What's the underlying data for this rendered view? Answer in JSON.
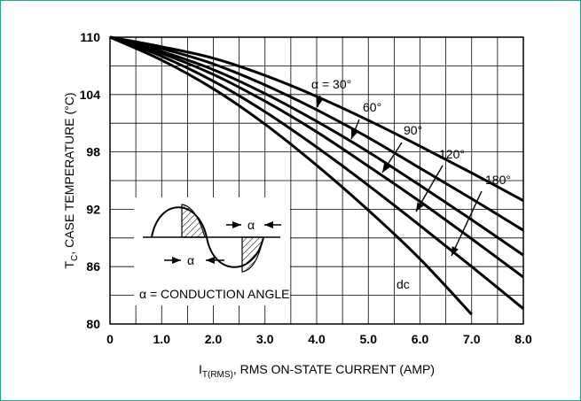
{
  "chart_data": {
    "type": "line",
    "xlim": [
      0,
      8
    ],
    "ylim": [
      80,
      110
    ],
    "grid": true,
    "x_ticks": [
      "0",
      "1.0",
      "2.0",
      "3.0",
      "4.0",
      "5.0",
      "6.0",
      "7.0",
      "8.0"
    ],
    "y_ticks": [
      "80",
      "86",
      "92",
      "98",
      "104",
      "110"
    ],
    "xlabel": {
      "main": "I",
      "sub": "T(RMS)",
      "rest": ", RMS ON-STATE CURRENT (AMP)"
    },
    "ylabel": {
      "main": "T",
      "sub": "C",
      "rest": ", CASE TEMPERATURE (°C)"
    },
    "series": [
      {
        "name": "α = 30°",
        "x": [
          0,
          1,
          2,
          3,
          4,
          5,
          6,
          7,
          8
        ],
        "y": [
          110,
          109.0,
          107.8,
          106.0,
          103.8,
          101.3,
          98.6,
          95.8,
          92.9
        ]
      },
      {
        "name": "60°",
        "x": [
          0,
          1,
          2,
          3,
          4,
          5,
          6,
          7,
          8
        ],
        "y": [
          110,
          108.8,
          107.2,
          105.0,
          102.4,
          99.5,
          96.3,
          93.1,
          89.8
        ]
      },
      {
        "name": "90°",
        "x": [
          0,
          1,
          2,
          3,
          4,
          5,
          6,
          7,
          8
        ],
        "y": [
          110,
          108.5,
          106.6,
          104.1,
          101.2,
          98.0,
          94.5,
          90.9,
          87.2
        ]
      },
      {
        "name": "120°",
        "x": [
          0,
          1,
          2,
          3,
          4,
          5,
          6,
          7,
          8
        ],
        "y": [
          110,
          108.3,
          106.1,
          103.3,
          100.1,
          96.5,
          92.8,
          88.9,
          84.9
        ]
      },
      {
        "name": "180°",
        "x": [
          0,
          1,
          2,
          3,
          4,
          5,
          6,
          7,
          8
        ],
        "y": [
          110,
          108.0,
          105.4,
          102.2,
          98.5,
          94.5,
          90.3,
          86.0,
          81.6
        ]
      },
      {
        "name": "dc",
        "x": [
          0,
          1,
          2,
          3,
          4,
          5,
          6,
          7
        ],
        "y": [
          110,
          107.6,
          104.6,
          100.9,
          96.6,
          91.9,
          86.8,
          81.0
        ]
      }
    ],
    "annotations": {
      "alpha_symbol": "α",
      "conduction_angle": "α = CONDUCTION ANGLE"
    }
  }
}
